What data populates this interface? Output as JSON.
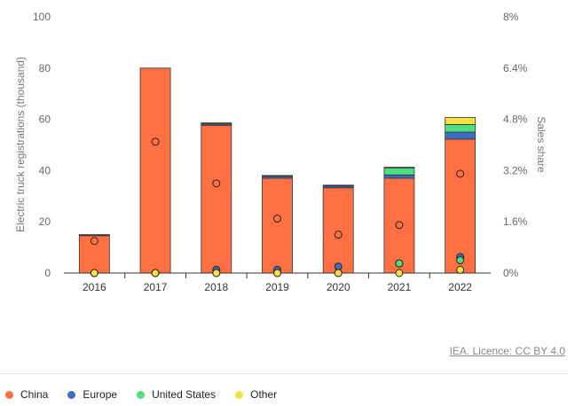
{
  "chart_data": {
    "type": "bar",
    "categories": [
      "2016",
      "2017",
      "2018",
      "2019",
      "2020",
      "2021",
      "2022"
    ],
    "stacked": true,
    "series": [
      {
        "name": "China",
        "color": "#FF7043",
        "values": [
          14.6,
          80,
          57.7,
          37,
          33.3,
          37,
          52.3
        ]
      },
      {
        "name": "Europe",
        "color": "#3C6CC6",
        "values": [
          0.2,
          0,
          0.5,
          0.7,
          0.7,
          1.3,
          2.7
        ]
      },
      {
        "name": "United States",
        "color": "#4EE07F",
        "values": [
          0,
          0,
          0.1,
          0.1,
          0.1,
          2.7,
          3
        ]
      },
      {
        "name": "Other",
        "color": "#F6E141",
        "values": [
          0.2,
          0,
          0.3,
          0.3,
          0.2,
          0.3,
          2.7
        ]
      }
    ],
    "sales_share": {
      "China": [
        1.0,
        4.1,
        2.8,
        1.7,
        1.2,
        1.5,
        3.1
      ],
      "Europe": [
        0.0,
        0.0,
        0.1,
        0.1,
        0.2,
        0.3,
        0.5
      ],
      "United States": [
        0.0,
        0.0,
        0.0,
        0.0,
        0.0,
        0.3,
        0.4
      ],
      "Other": [
        0.0,
        0.0,
        0.0,
        0.0,
        0.0,
        0.0,
        0.1
      ]
    },
    "ylabel": "Electric truck registrations (thousand)",
    "y2label": "Sales share",
    "ylim": [
      0,
      100
    ],
    "yticks": [
      "0",
      "20",
      "40",
      "60",
      "80",
      "100"
    ],
    "y2lim": [
      0,
      8
    ],
    "y2ticks": [
      "0%",
      "1.6%",
      "3.2%",
      "4.8%",
      "6.4%",
      "8%"
    ],
    "grid": false,
    "legend_position": "bottom-left"
  },
  "credit": "IEA. Licence: CC BY 4.0",
  "legend": [
    {
      "label": "China",
      "color": "#FF7043"
    },
    {
      "label": "Europe",
      "color": "#3C6CC6"
    },
    {
      "label": "United States",
      "color": "#4EE07F"
    },
    {
      "label": "Other",
      "color": "#F6E141"
    }
  ]
}
